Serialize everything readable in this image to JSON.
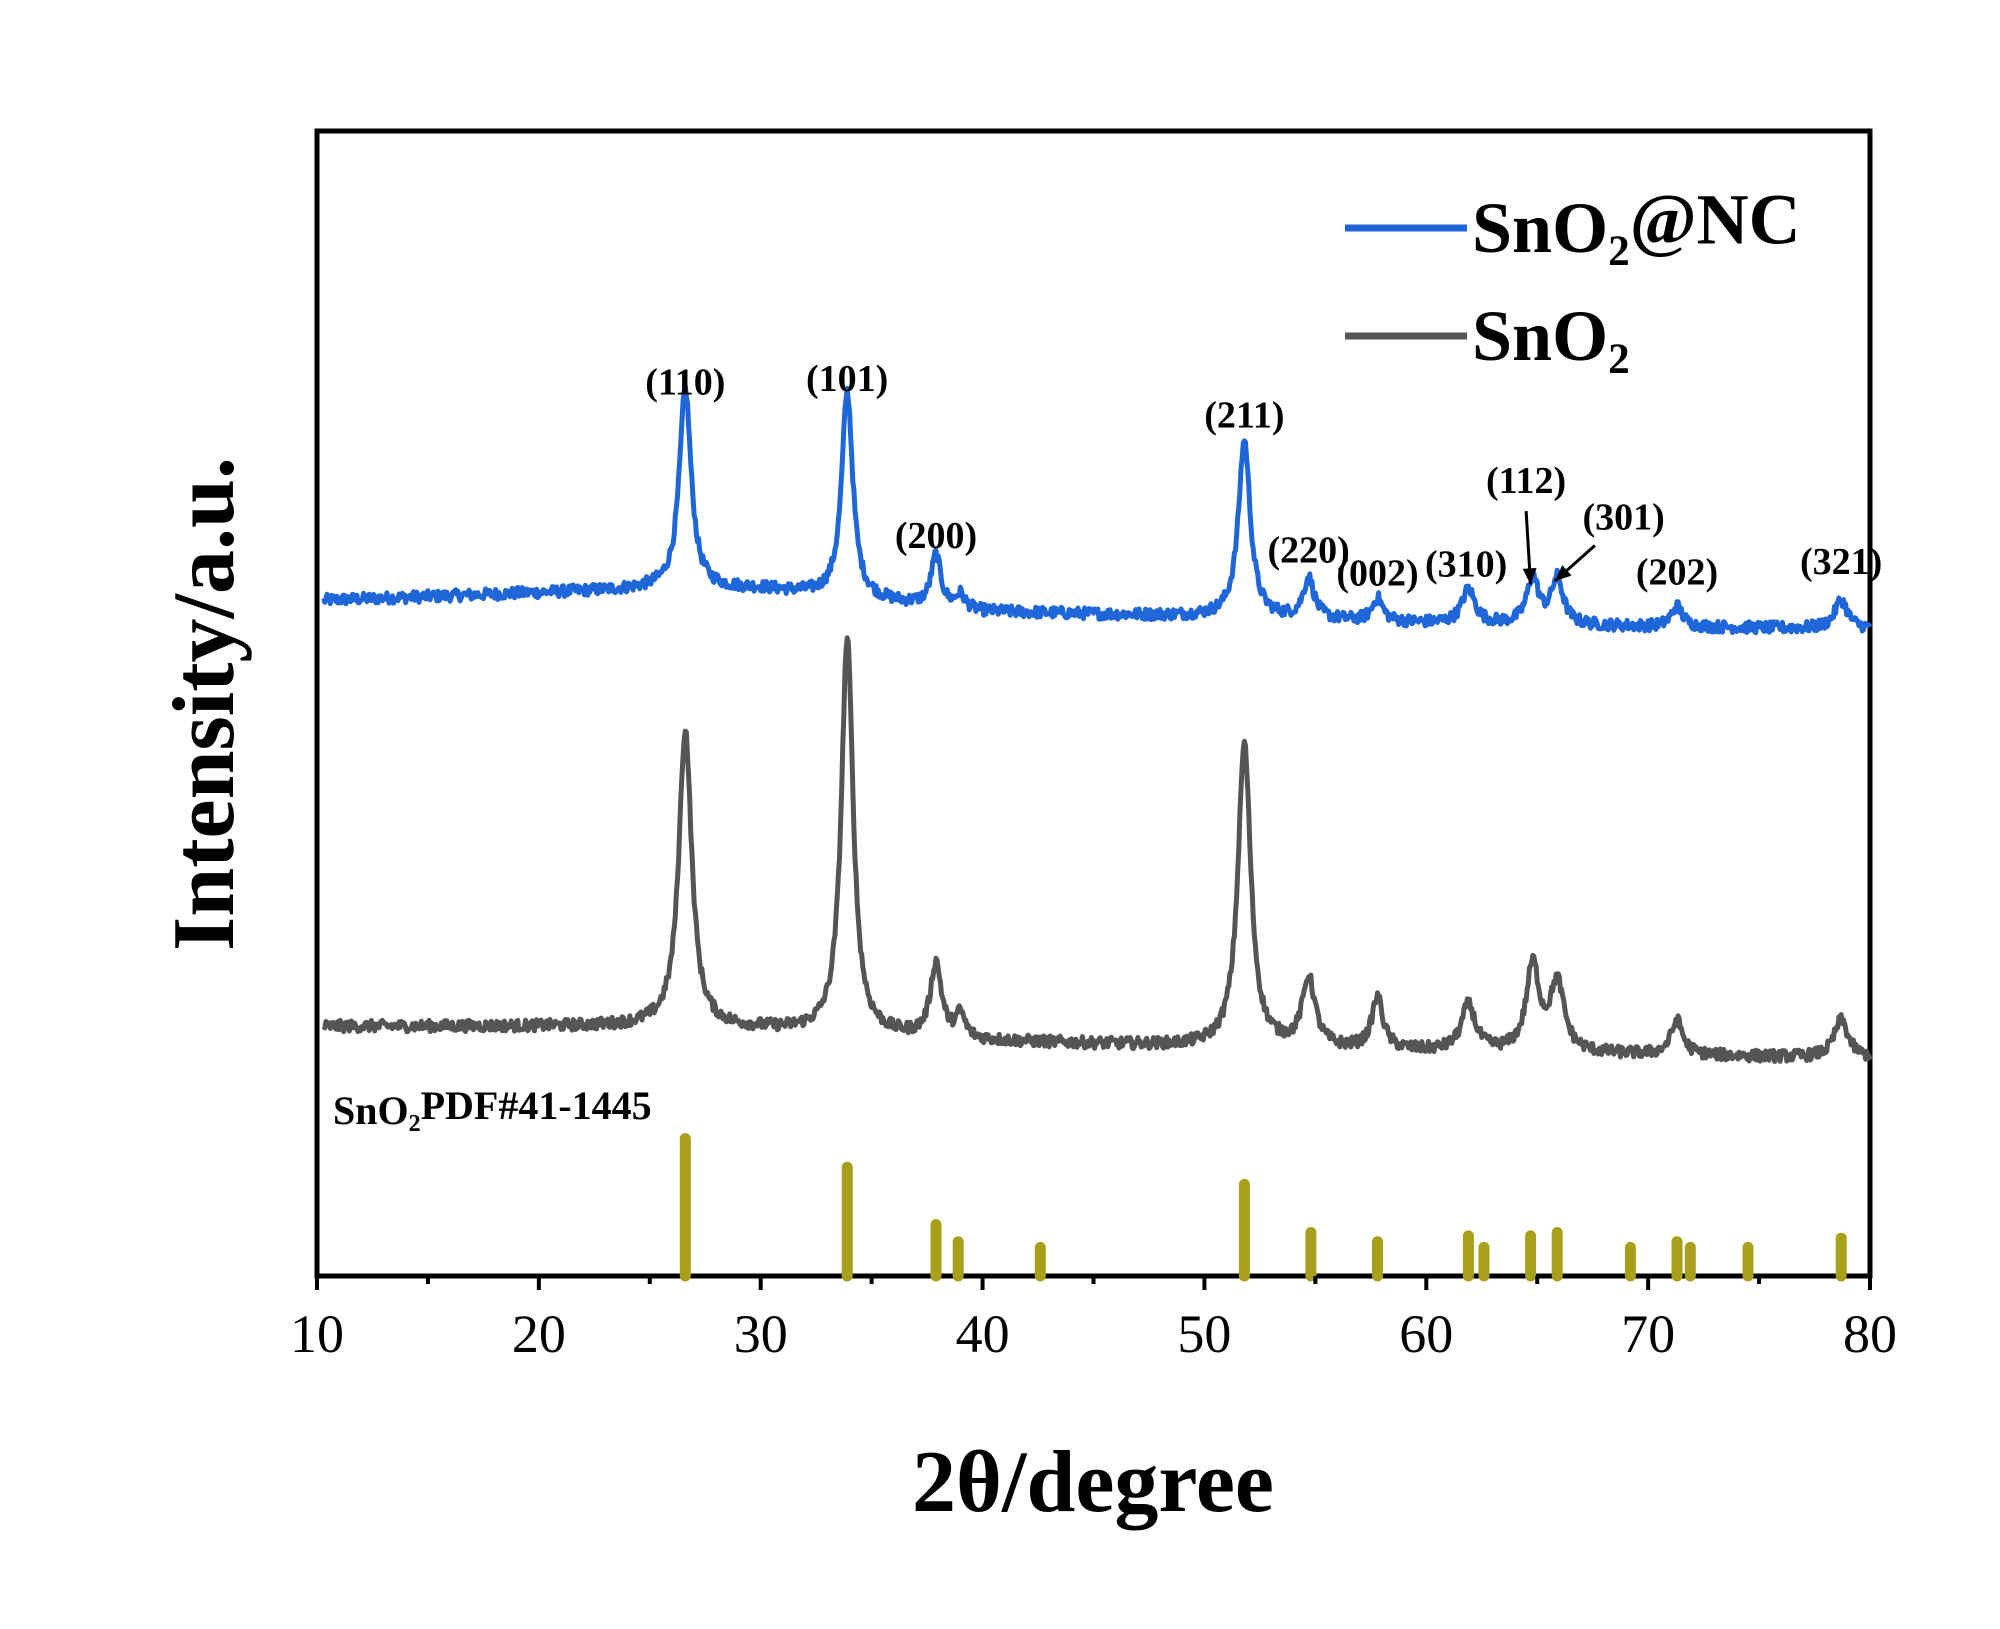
{
  "chart_data": {
    "type": "line",
    "xlabel": "2θ/degree",
    "ylabel": "Intensity/a.u.",
    "xlim": [
      10,
      80
    ],
    "x_ticks": [
      "10",
      "20",
      "30",
      "40",
      "50",
      "60",
      "70",
      "80"
    ],
    "y_ticks": false,
    "grid": false,
    "legend_position": "top-right",
    "series": [
      {
        "name_main": "SnO",
        "name_sub": "2",
        "name_tail": "@NC",
        "color": "#1f66d9",
        "baseline": [
          [
            10,
            0.59
          ],
          [
            25,
            0.6
          ],
          [
            30,
            0.6
          ],
          [
            40,
            0.58
          ],
          [
            50,
            0.576
          ],
          [
            60,
            0.57
          ],
          [
            70,
            0.567
          ],
          [
            80,
            0.565
          ]
        ],
        "peaks": [
          {
            "x": 26.6,
            "h": 0.175,
            "w": 0.32
          },
          {
            "x": 33.9,
            "h": 0.18,
            "w": 0.3
          },
          {
            "x": 37.9,
            "h": 0.045,
            "w": 0.26
          },
          {
            "x": 39.0,
            "h": 0.012,
            "w": 0.25
          },
          {
            "x": 51.8,
            "h": 0.155,
            "w": 0.32
          },
          {
            "x": 54.7,
            "h": 0.035,
            "w": 0.3
          },
          {
            "x": 57.8,
            "h": 0.02,
            "w": 0.28
          },
          {
            "x": 61.9,
            "h": 0.03,
            "w": 0.35
          },
          {
            "x": 64.8,
            "h": 0.04,
            "w": 0.32
          },
          {
            "x": 65.9,
            "h": 0.04,
            "w": 0.32
          },
          {
            "x": 71.3,
            "h": 0.018,
            "w": 0.3
          },
          {
            "x": 78.7,
            "h": 0.025,
            "w": 0.35
          }
        ]
      },
      {
        "name_main": "SnO",
        "name_sub": "2",
        "name_tail": "",
        "color": "#555555",
        "baseline": [
          [
            10,
            0.218
          ],
          [
            25,
            0.218
          ],
          [
            30,
            0.215
          ],
          [
            40,
            0.205
          ],
          [
            50,
            0.2
          ],
          [
            60,
            0.196
          ],
          [
            70,
            0.193
          ],
          [
            80,
            0.19
          ]
        ],
        "peaks": [
          {
            "x": 26.6,
            "h": 0.26,
            "w": 0.35
          },
          {
            "x": 33.9,
            "h": 0.345,
            "w": 0.32
          },
          {
            "x": 37.9,
            "h": 0.065,
            "w": 0.3
          },
          {
            "x": 39.0,
            "h": 0.02,
            "w": 0.25
          },
          {
            "x": 51.8,
            "h": 0.265,
            "w": 0.35
          },
          {
            "x": 54.7,
            "h": 0.06,
            "w": 0.35
          },
          {
            "x": 57.8,
            "h": 0.045,
            "w": 0.3
          },
          {
            "x": 61.9,
            "h": 0.04,
            "w": 0.38
          },
          {
            "x": 64.8,
            "h": 0.075,
            "w": 0.35
          },
          {
            "x": 65.9,
            "h": 0.06,
            "w": 0.38
          },
          {
            "x": 71.3,
            "h": 0.03,
            "w": 0.32
          },
          {
            "x": 78.7,
            "h": 0.033,
            "w": 0.38
          }
        ]
      }
    ],
    "reference": {
      "label_main": "SnO",
      "label_sub": "2",
      "label_tail": "PDF#41-1445",
      "color": "#a89f1a",
      "lines": [
        [
          26.6,
          0.12
        ],
        [
          33.9,
          0.095
        ],
        [
          37.9,
          0.045
        ],
        [
          38.9,
          0.03
        ],
        [
          42.6,
          0.025
        ],
        [
          51.8,
          0.08
        ],
        [
          54.8,
          0.038
        ],
        [
          57.8,
          0.03
        ],
        [
          61.9,
          0.035
        ],
        [
          62.6,
          0.025
        ],
        [
          64.7,
          0.035
        ],
        [
          65.9,
          0.038
        ],
        [
          69.2,
          0.025
        ],
        [
          71.3,
          0.03
        ],
        [
          71.9,
          0.025
        ],
        [
          74.5,
          0.025
        ],
        [
          78.7,
          0.033
        ]
      ]
    },
    "peak_labels": [
      {
        "text": "(110)",
        "x": 26.6,
        "y": 0.77
      },
      {
        "text": "(101)",
        "x": 33.9,
        "y": 0.773
      },
      {
        "text": "(200)",
        "x": 37.9,
        "y": 0.636
      },
      {
        "text": "(211)",
        "x": 51.8,
        "y": 0.741
      },
      {
        "text": "(220)",
        "x": 54.7,
        "y": 0.623
      },
      {
        "text": "(002)",
        "x": 57.8,
        "y": 0.603
      },
      {
        "text": "(310)",
        "x": 61.8,
        "y": 0.611
      },
      {
        "text": "(112)",
        "x": 64.5,
        "y": 0.684
      },
      {
        "text": "(301)",
        "x": 68.9,
        "y": 0.652
      },
      {
        "text": "(202)",
        "x": 71.3,
        "y": 0.604
      },
      {
        "text": "(321)",
        "x": 78.7,
        "y": 0.613
      }
    ],
    "annotations": [
      {
        "from": [
          64.5,
          0.668
        ],
        "to": [
          64.7,
          0.604
        ]
      },
      {
        "from": [
          67.6,
          0.638
        ],
        "to": [
          65.8,
          0.607
        ]
      }
    ]
  }
}
